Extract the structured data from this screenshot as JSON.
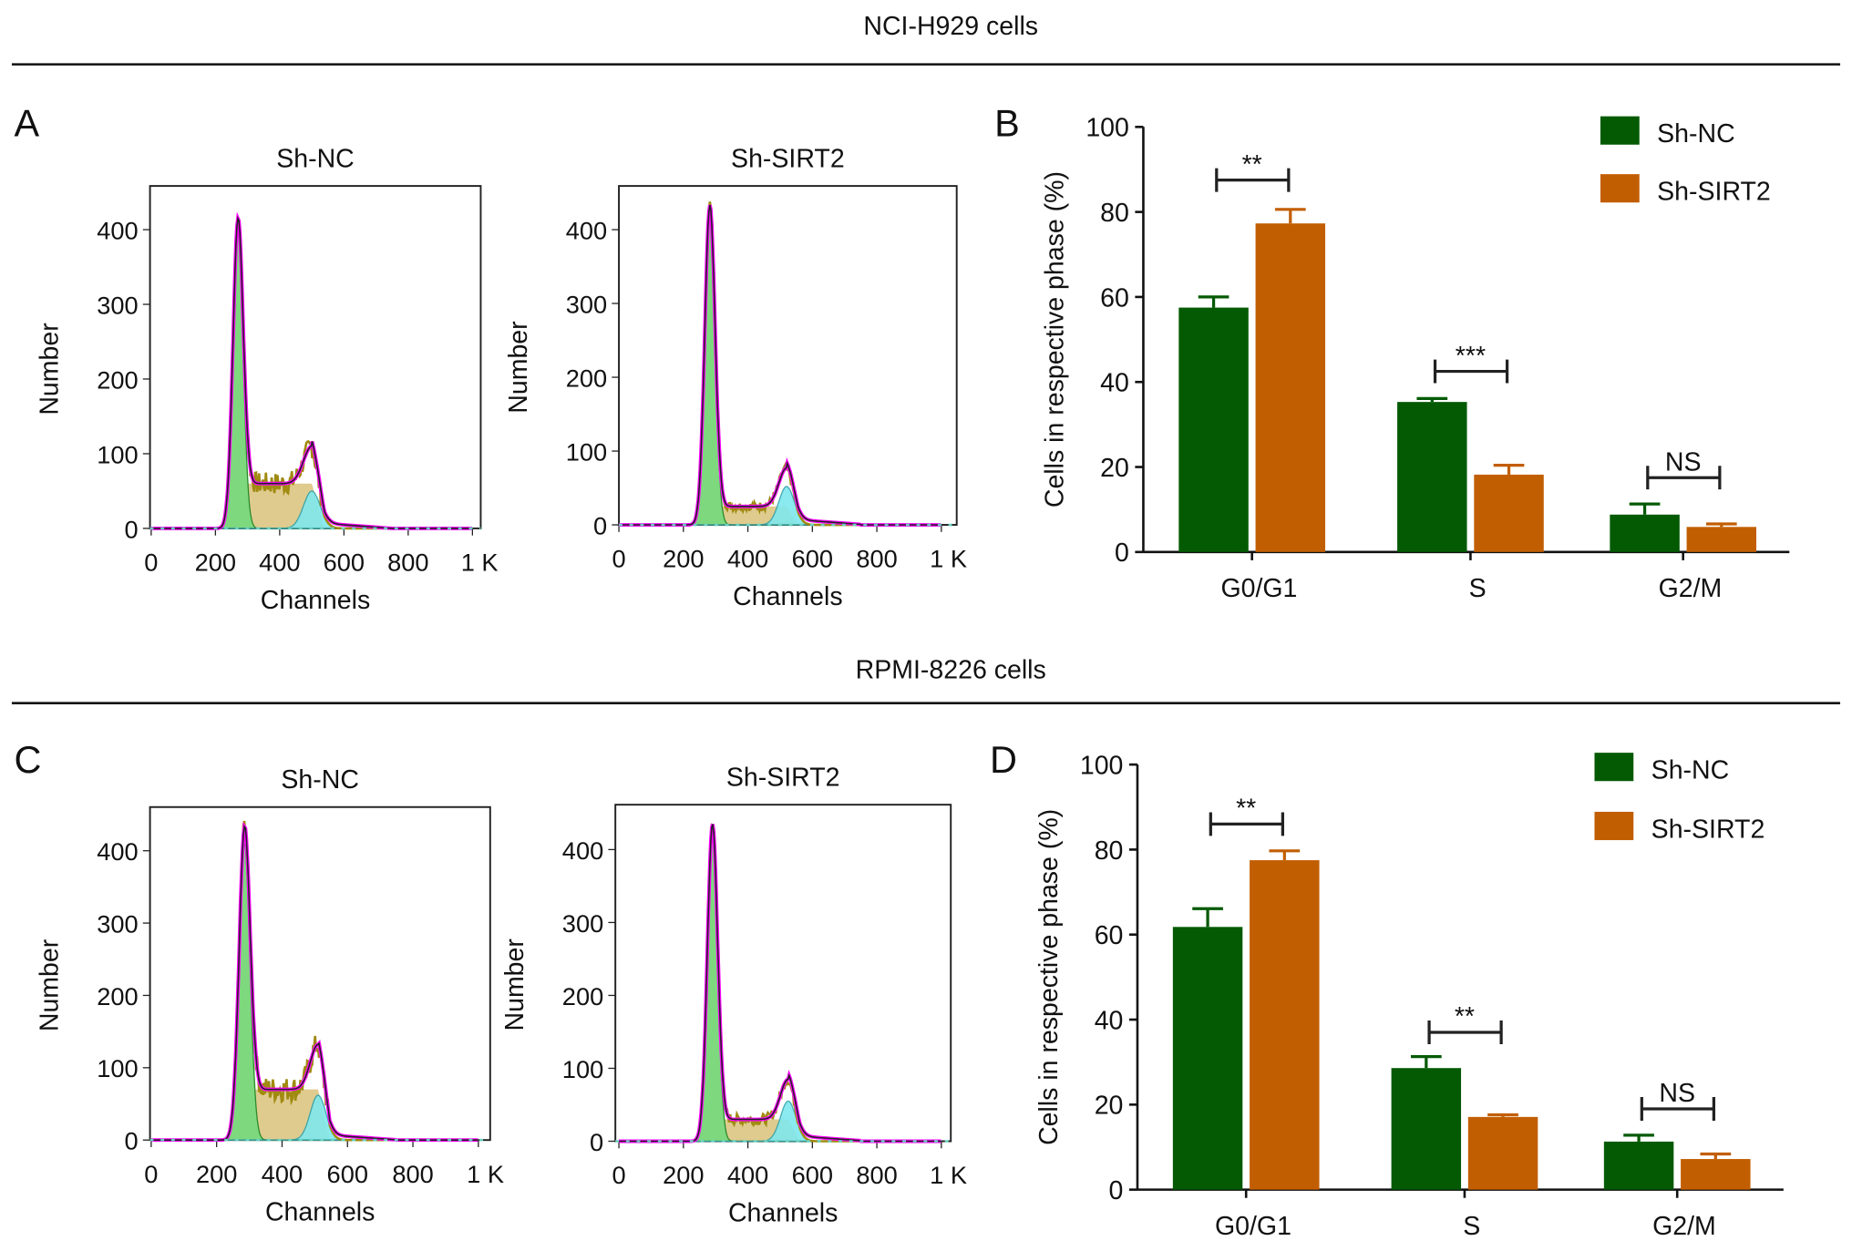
{
  "sections": [
    {
      "title": "NCI-H929 cells",
      "hist_letter": "A",
      "bar_letter": "B"
    },
    {
      "title": "RPMI-8226 cells",
      "hist_letter": "C",
      "bar_letter": "D"
    }
  ],
  "colors": {
    "sh_nc": "#035a03",
    "sh_sirt2": "#c25e02",
    "g1": "#7ed87e",
    "s": "#d9c27a",
    "g2": "#7fe8ee",
    "total": "#ff00ff"
  },
  "chart_data": [
    {
      "type": "line",
      "panel": "A",
      "title": "Sh-NC",
      "xlabel": "Channels",
      "ylabel": "Number",
      "xticks": [
        "0",
        "200",
        "400",
        "600",
        "800",
        "1 K"
      ],
      "yticks": [
        "0",
        "100",
        "200",
        "300",
        "400"
      ],
      "xlim": [
        0,
        1000
      ],
      "ylim": [
        0,
        450
      ],
      "g1": {
        "mean": 270,
        "height": 395,
        "sd": 16
      },
      "s_level": 60,
      "g2": {
        "mean": 500,
        "height": 50,
        "sd": 26
      }
    },
    {
      "type": "line",
      "panel": "A",
      "title": "Sh-SIRT2",
      "xlabel": "Channels",
      "ylabel": "Number",
      "xticks": [
        "0",
        "200",
        "400",
        "600",
        "800",
        "1 K"
      ],
      "yticks": [
        "0",
        "100",
        "200",
        "300",
        "400"
      ],
      "xlim": [
        0,
        1000
      ],
      "ylim": [
        0,
        450
      ],
      "g1": {
        "mean": 282,
        "height": 425,
        "sd": 16
      },
      "s_level": 25,
      "g2": {
        "mean": 520,
        "height": 52,
        "sd": 24
      }
    },
    {
      "type": "bar",
      "panel": "B",
      "ylabel": "Cells in respective phase (%)",
      "categories": [
        "G0/G1",
        "S",
        "G2/M"
      ],
      "yticks": [
        "0",
        "20",
        "40",
        "60",
        "80",
        "100"
      ],
      "ylim": [
        0,
        100
      ],
      "series": [
        {
          "name": "Sh-NC",
          "values": [
            57.5,
            35.3,
            8.8
          ],
          "errors": [
            2.5,
            0.8,
            2.5
          ]
        },
        {
          "name": "Sh-SIRT2",
          "values": [
            77.3,
            18.2,
            5.9
          ],
          "errors": [
            3.3,
            2.2,
            0.7
          ]
        }
      ],
      "significance": [
        {
          "label": "**",
          "y": 87.5
        },
        {
          "label": "***",
          "y": 42.5
        },
        {
          "label": "NS",
          "y": 17.5
        }
      ],
      "legend": "top-right"
    },
    {
      "type": "line",
      "panel": "C",
      "title": "Sh-NC",
      "xlabel": "Channels",
      "ylabel": "Number",
      "xticks": [
        "0",
        "200",
        "400",
        "600",
        "800",
        "1 K"
      ],
      "yticks": [
        "0",
        "100",
        "200",
        "300",
        "400"
      ],
      "xlim": [
        0,
        1000
      ],
      "ylim": [
        0,
        450
      ],
      "g1": {
        "mean": 285,
        "height": 410,
        "sd": 17
      },
      "s_level": 70,
      "g2": {
        "mean": 510,
        "height": 62,
        "sd": 24
      }
    },
    {
      "type": "line",
      "panel": "C",
      "title": "Sh-SIRT2",
      "xlabel": "Channels",
      "ylabel": "Number",
      "xticks": [
        "0",
        "200",
        "400",
        "600",
        "800",
        "1 K"
      ],
      "yticks": [
        "0",
        "100",
        "200",
        "300",
        "400"
      ],
      "xlim": [
        0,
        1000
      ],
      "ylim": [
        0,
        450
      ],
      "g1": {
        "mean": 290,
        "height": 425,
        "sd": 16
      },
      "s_level": 30,
      "g2": {
        "mean": 525,
        "height": 55,
        "sd": 24
      }
    },
    {
      "type": "bar",
      "panel": "D",
      "ylabel": "Cells in respective phase (%)",
      "categories": [
        "G0/G1",
        "S",
        "G2/M"
      ],
      "yticks": [
        "0",
        "20",
        "40",
        "60",
        "80",
        "100"
      ],
      "ylim": [
        0,
        100
      ],
      "series": [
        {
          "name": "Sh-NC",
          "values": [
            61.8,
            28.6,
            11.3
          ],
          "errors": [
            4.3,
            2.7,
            1.5
          ]
        },
        {
          "name": "Sh-SIRT2",
          "values": [
            77.5,
            17.1,
            7.2
          ],
          "errors": [
            2.2,
            0.5,
            1.2
          ]
        }
      ],
      "significance": [
        {
          "label": "**",
          "y": 86
        },
        {
          "label": "**",
          "y": 37
        },
        {
          "label": "NS",
          "y": 19
        }
      ],
      "legend": "top-right"
    }
  ]
}
